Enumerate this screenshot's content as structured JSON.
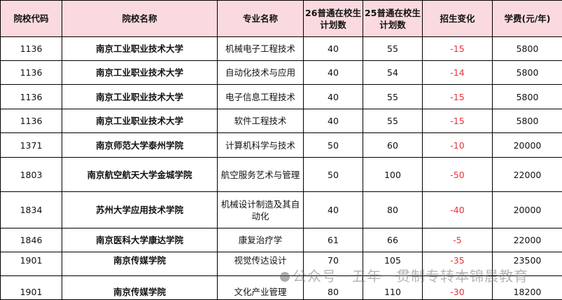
{
  "headers": [
    "院校代码",
    "院校名称",
    "专业名称",
    "26普通在校生计划数",
    "25普通在校生计划数",
    "招生变化",
    "学费(元/年)"
  ],
  "rows": [
    [
      "1136",
      "南京工业职业技术大学",
      "机械电子工程技术",
      "40",
      "55",
      "-15",
      "5800"
    ],
    [
      "1136",
      "南京工业职业技术大学",
      "自动化技术与应用",
      "40",
      "54",
      "-14",
      "5800"
    ],
    [
      "1136",
      "南京工业职业技术大学",
      "电子信息工程技术",
      "40",
      "55",
      "-15",
      "5800"
    ],
    [
      "1136",
      "南京工业职业技术大学",
      "软件工程技术",
      "40",
      "55",
      "-15",
      "5800"
    ],
    [
      "1371",
      "南京师范大学泰州学院",
      "计算机科学与技术",
      "50",
      "60",
      "-10",
      "20000"
    ],
    [
      "1803",
      "南京航空航天大学金城学院",
      "航空服务艺术与管理",
      "50",
      "100",
      "-50",
      "22000"
    ],
    [
      "1834",
      "苏州大学应用技术学院",
      "机械设计制造及其自动化",
      "40",
      "80",
      "-40",
      "20000"
    ],
    [
      "1846",
      "南京医科大学康达学院",
      "康复治疗学",
      "61",
      "66",
      "-5",
      "22000"
    ],
    [
      "1901",
      "南京传媒学院",
      "视觉传达设计",
      "70",
      "105",
      "-35",
      "23500"
    ],
    [
      "1901",
      "南京传媒学院",
      "文化产业管理",
      "80",
      "110",
      "-30",
      "18200"
    ]
  ],
  "watermark": "公众号 · 五年一贯制专转本锦晨教育",
  "colors": {
    "header_bg": "#fadadf",
    "change_text": "#e8323c"
  }
}
